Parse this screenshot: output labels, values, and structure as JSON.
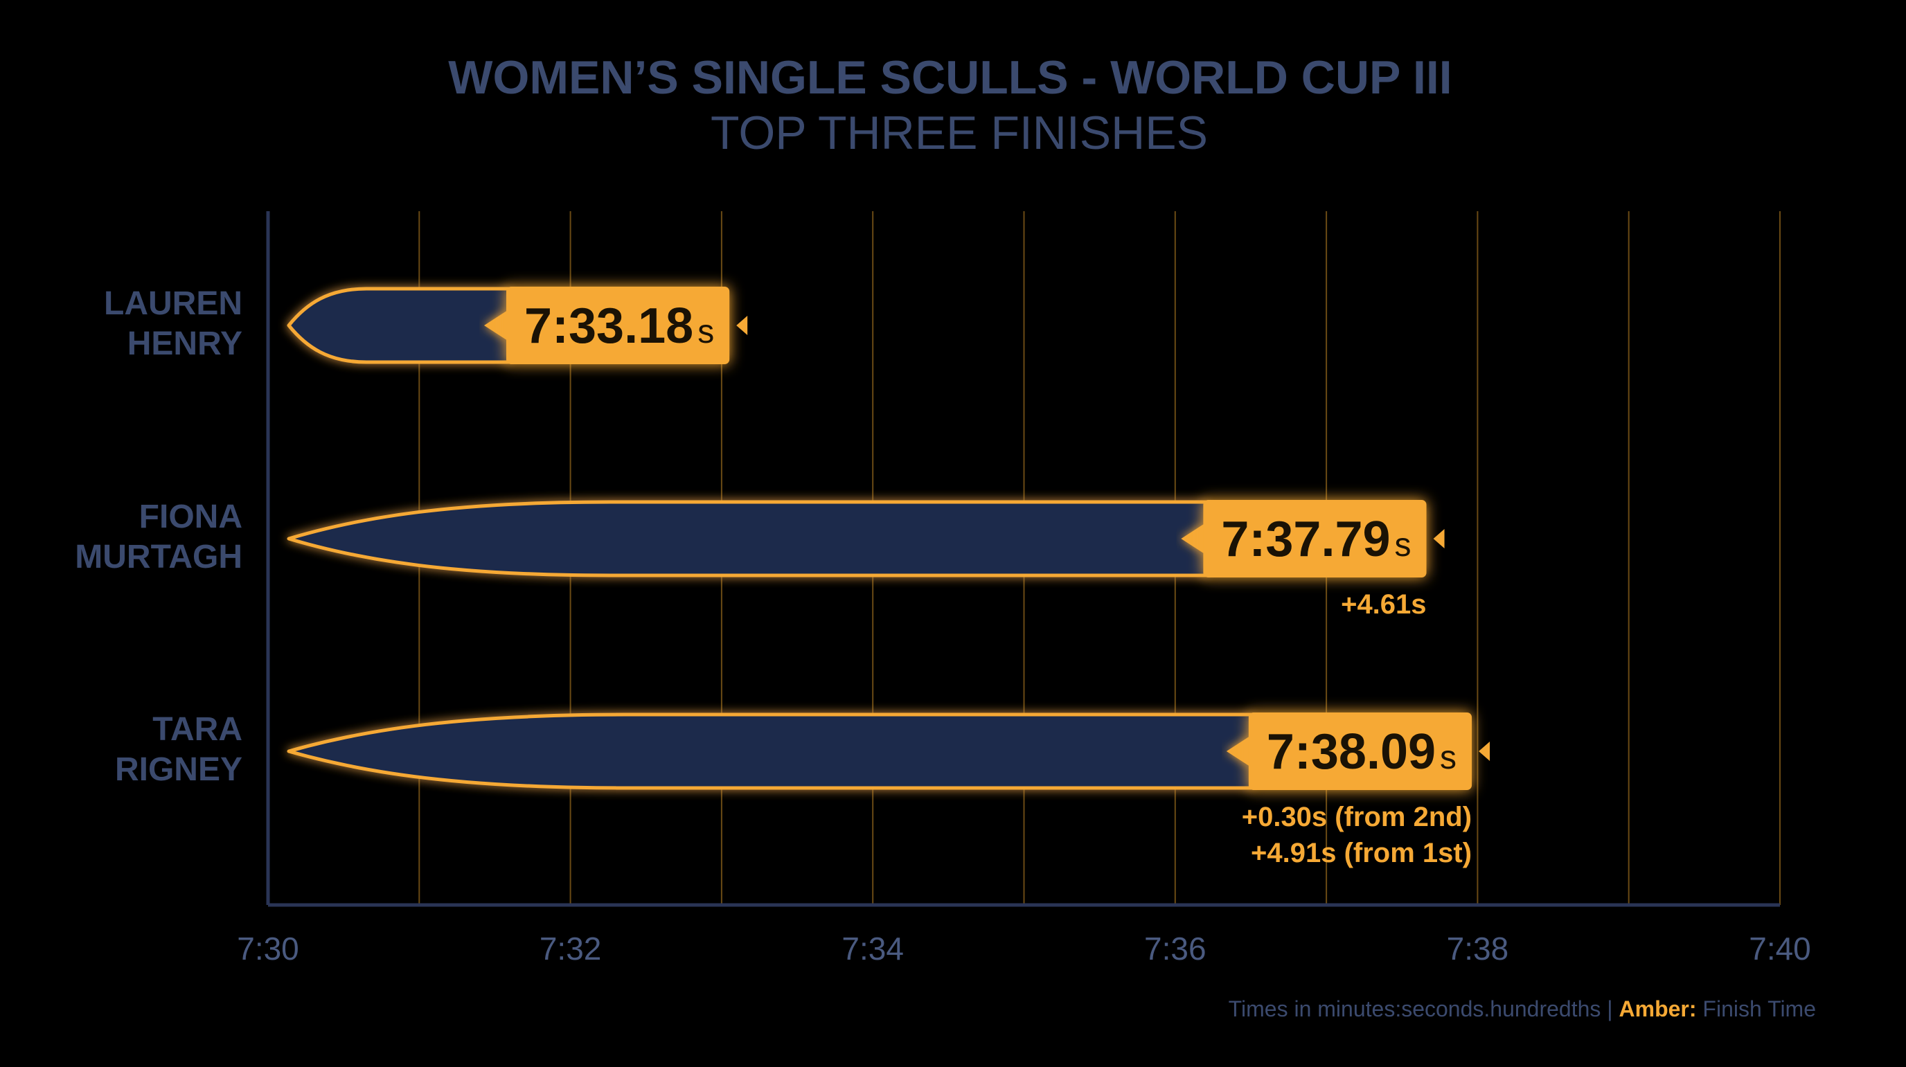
{
  "chart_data": {
    "type": "bar",
    "title": "WOMEN’S SINGLE SCULLS - WORLD CUP III",
    "subtitle": "TOP THREE FINISHES",
    "xlim": [
      450,
      460
    ],
    "x_ticks": [
      {
        "value": 450,
        "label": "7:30"
      },
      {
        "value": 452,
        "label": "7:32"
      },
      {
        "value": 454,
        "label": "7:34"
      },
      {
        "value": 456,
        "label": "7:36"
      },
      {
        "value": 458,
        "label": "7:38"
      },
      {
        "value": 460,
        "label": "7:40"
      }
    ],
    "grid_lines": [
      451,
      452,
      453,
      454,
      455,
      456,
      457,
      458,
      459,
      460
    ],
    "grid": true,
    "series": [
      {
        "values": [
          453.18,
          457.79,
          458.09
        ]
      }
    ],
    "rows": [
      {
        "name_lines": [
          "LAUREN",
          "HENRY"
        ],
        "time": 453.18,
        "time_label": "7:33.18",
        "unit": "s",
        "deltas": []
      },
      {
        "name_lines": [
          "FIONA",
          "MURTAGH"
        ],
        "time": 457.79,
        "time_label": "7:37.79",
        "unit": "s",
        "deltas": [
          "+4.61s"
        ]
      },
      {
        "name_lines": [
          "TARA",
          "RIGNEY"
        ],
        "time": 458.09,
        "time_label": "7:38.09",
        "unit": "s",
        "deltas": [
          "+0.30s (from 2nd)",
          "+4.91s (from 1st)"
        ]
      }
    ],
    "footnote": {
      "prefix": "Times in minutes:seconds.hundredths | ",
      "highlight": "Amber:",
      "suffix": " Finish Time"
    }
  },
  "colors": {
    "background": "#000000",
    "amber": "#F6A935",
    "hull_fill": "#1F2C4B",
    "label_blue": "#3B4A6E",
    "tick_blue": "#4A5A80",
    "grid": "#6A4A14",
    "axis": "#2A3556",
    "time_text": "#1A1205"
  }
}
